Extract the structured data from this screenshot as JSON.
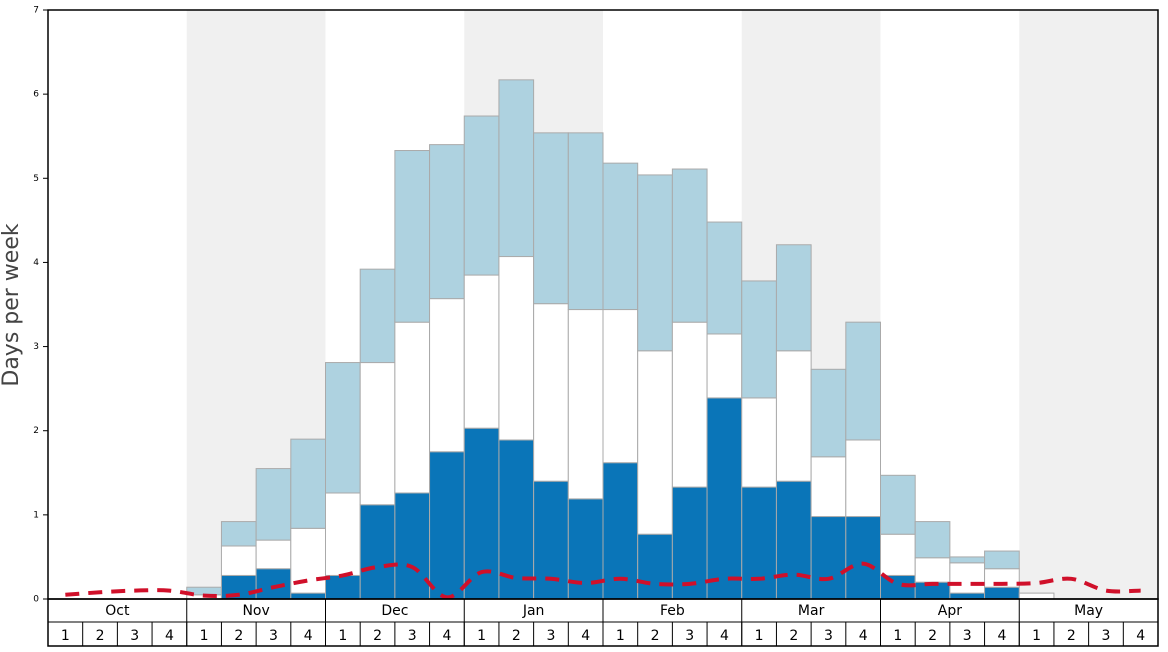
{
  "chart_data": {
    "type": "bar",
    "stacked": true,
    "y_label": "Days per week",
    "months": [
      "Oct",
      "Nov",
      "Dec",
      "Jan",
      "Feb",
      "Mar",
      "Apr",
      "May"
    ],
    "categories": [
      "1",
      "2",
      "3",
      "4",
      "1",
      "2",
      "3",
      "4",
      "1",
      "2",
      "3",
      "4",
      "1",
      "2",
      "3",
      "4",
      "1",
      "2",
      "3",
      "4",
      "1",
      "2",
      "3",
      "4",
      "1",
      "2",
      "3",
      "4",
      "1",
      "2",
      "3",
      "4"
    ],
    "ylim": [
      0,
      7
    ],
    "yticks": [
      0,
      1,
      2,
      3,
      4,
      5,
      6,
      7
    ],
    "series": [
      {
        "color": "#0a75b8",
        "values": [
          0,
          0,
          0,
          0,
          0,
          0.28,
          0.36,
          0.07,
          0.28,
          1.12,
          1.26,
          1.75,
          2.03,
          1.89,
          1.4,
          1.19,
          1.62,
          0.77,
          1.33,
          2.39,
          1.33,
          1.4,
          0.98,
          0.98,
          0.28,
          0.2,
          0.07,
          0.14,
          0,
          0,
          0,
          0
        ]
      },
      {
        "color": "#ffffff",
        "values": [
          0,
          0,
          0,
          0,
          0.05,
          0.35,
          0.34,
          0.77,
          0.98,
          1.69,
          2.03,
          1.82,
          1.82,
          2.18,
          2.11,
          2.25,
          1.82,
          2.18,
          1.96,
          0.76,
          1.06,
          1.55,
          0.71,
          0.91,
          0.49,
          0.29,
          0.36,
          0.22,
          0.07,
          0,
          0,
          0
        ]
      },
      {
        "color": "#aed2e0",
        "values": [
          0,
          0,
          0,
          0,
          0.09,
          0.29,
          0.85,
          1.06,
          1.55,
          1.11,
          2.04,
          1.83,
          1.89,
          2.1,
          2.03,
          2.1,
          1.74,
          2.09,
          1.82,
          1.33,
          1.39,
          1.26,
          1.04,
          1.4,
          0.7,
          0.43,
          0.07,
          0.21,
          0,
          0,
          0,
          0
        ]
      }
    ],
    "line": {
      "color": "#d0102a",
      "values": [
        0.05,
        0.08,
        0.1,
        0.1,
        0.04,
        0.05,
        0.14,
        0.22,
        0.28,
        0.38,
        0.38,
        0.02,
        0.32,
        0.25,
        0.24,
        0.19,
        0.24,
        0.18,
        0.18,
        0.24,
        0.24,
        0.29,
        0.24,
        0.42,
        0.18,
        0.18,
        0.18,
        0.18,
        0.19,
        0.24,
        0.1,
        0.1
      ]
    }
  }
}
